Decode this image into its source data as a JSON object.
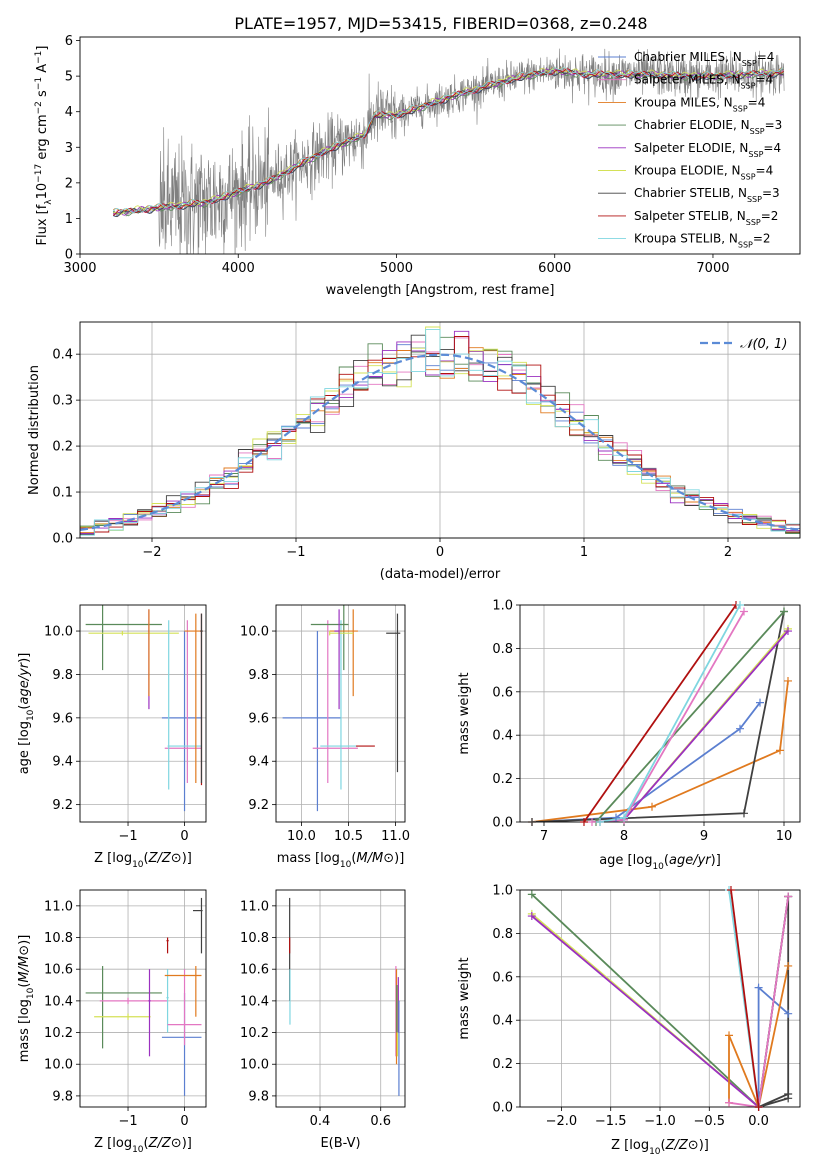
{
  "figure": {
    "title": "PLATE=1957, MJD=53415, FIBERID=0368, z=0.248"
  },
  "colors": {
    "Chabrier MILES": "#5b7fd0",
    "Salpeter MILES": "#e377c2",
    "Kroupa MILES": "#e07a1f",
    "Chabrier ELODIE": "#5a8a5a",
    "Salpeter ELODIE": "#9b30c0",
    "Kroupa ELODIE": "#d4e157",
    "Chabrier STELIB": "#404040",
    "Salpeter STELIB": "#b01010",
    "Kroupa STELIB": "#7fd6e0",
    "normal": "#5b8bd6",
    "data": "#808080"
  },
  "chart_data": [
    {
      "id": "spectrum",
      "type": "line",
      "xlabel": "wavelength [Angstrom, rest frame]",
      "ylabel_parts": [
        "Flux [f",
        "λ",
        "10",
        "−17",
        " erg cm",
        "−2",
        " s",
        "−1",
        " A",
        "−1",
        "]"
      ],
      "xlim": [
        3000,
        7550
      ],
      "ylim": [
        0,
        6.1
      ],
      "xticks": [
        3000,
        4000,
        5000,
        6000,
        7000
      ],
      "yticks": [
        0,
        1,
        2,
        3,
        4,
        5,
        6
      ],
      "continuum_x": [
        3210,
        3500,
        3800,
        4000,
        4200,
        4400,
        4600,
        4800,
        4860,
        5000,
        5200,
        5400,
        5600,
        5800,
        6000,
        6200,
        6400,
        6600,
        6800,
        7000,
        7200,
        7450
      ],
      "continuum_y": [
        1.15,
        1.3,
        1.45,
        1.75,
        2.05,
        2.55,
        3.0,
        3.35,
        3.9,
        3.9,
        4.2,
        4.5,
        4.75,
        5.0,
        5.15,
        5.05,
        5.05,
        5.05,
        5.0,
        5.0,
        5.05,
        5.1
      ],
      "legend": [
        {
          "label": "Chabrier MILES, N",
          "sub": "SSP",
          "tail": "=4"
        },
        {
          "label": "Salpeter MILES, N",
          "sub": "SSP",
          "tail": "=4"
        },
        {
          "label": "Kroupa MILES, N",
          "sub": "SSP",
          "tail": "=4"
        },
        {
          "label": "Chabrier ELODIE, N",
          "sub": "SSP",
          "tail": "=3"
        },
        {
          "label": "Salpeter ELODIE, N",
          "sub": "SSP",
          "tail": "=4"
        },
        {
          "label": "Kroupa ELODIE, N",
          "sub": "SSP",
          "tail": "=4"
        },
        {
          "label": "Chabrier STELIB, N",
          "sub": "SSP",
          "tail": "=3"
        },
        {
          "label": "Salpeter STELIB, N",
          "sub": "SSP",
          "tail": "=2"
        },
        {
          "label": "Kroupa STELIB, N",
          "sub": "SSP",
          "tail": "=2"
        }
      ],
      "legend_placement": "top-right"
    },
    {
      "id": "residuals",
      "type": "step",
      "xlabel": "(data-model)/error",
      "ylabel": "Normed distribution",
      "xlim": [
        -2.5,
        2.5
      ],
      "ylim": [
        0,
        0.47
      ],
      "xticks": [
        -2,
        -1,
        0,
        1,
        2
      ],
      "yticks": [
        0.0,
        0.1,
        0.2,
        0.3,
        0.4
      ],
      "bin_width": 0.1,
      "legend_label": "𝒩(0, 1)",
      "legend_placement": "top-right",
      "grid": true
    },
    {
      "id": "age-vs-Z",
      "type": "errorbar",
      "xlabel": "Z [log10(Z/Z⊙)]",
      "ylabel": "age  [log10(age/yr)]",
      "xlim": [
        -1.85,
        0.38
      ],
      "ylim": [
        9.12,
        10.12
      ],
      "xticks": [
        -1,
        0
      ],
      "yticks": [
        9.2,
        9.4,
        9.6,
        9.8,
        10.0
      ],
      "points": [
        {
          "s": "Chabrier ELODIE",
          "x": -1.45,
          "y": 10.03,
          "xe": [
            -1.75,
            -0.4
          ],
          "ye": [
            9.82,
            10.12
          ]
        },
        {
          "s": "Kroupa ELODIE",
          "x": -1.1,
          "y": 9.99,
          "xe": [
            -1.7,
            -0.1
          ],
          "ye": [
            9.98,
            10.0
          ]
        },
        {
          "s": "Salpeter ELODIE",
          "x": -0.63,
          "y": 10.0,
          "xe": [
            -0.64,
            -0.62
          ],
          "ye": [
            9.64,
            10.1
          ]
        },
        {
          "s": "Kroupa MILES",
          "x": -0.63,
          "y": 10.0,
          "xe": [
            -0.64,
            -0.62
          ],
          "ye": [
            9.7,
            10.1
          ]
        },
        {
          "s": "Chabrier MILES",
          "x": 0.0,
          "y": 9.6,
          "xe": [
            -0.4,
            0.3
          ],
          "ye": [
            9.17,
            10.0
          ]
        },
        {
          "s": "Salpeter MILES",
          "x": 0.05,
          "y": 9.46,
          "xe": [
            -0.35,
            0.3
          ],
          "ye": [
            9.3,
            10.05
          ]
        },
        {
          "s": "Kroupa STELIB",
          "x": -0.28,
          "y": 9.47,
          "xe": [
            -0.3,
            0.3
          ],
          "ye": [
            9.27,
            10.05
          ]
        },
        {
          "s": "Kroupa MILES",
          "x": 0.2,
          "y": 10.0,
          "xe": [
            0.0,
            0.32
          ],
          "ye": [
            9.3,
            10.08
          ]
        },
        {
          "s": "Salpeter STELIB",
          "x": 0.3,
          "y": 10.0,
          "xe": [
            0.28,
            0.32
          ],
          "ye": [
            9.29,
            10.08
          ]
        },
        {
          "s": "Chabrier STELIB",
          "x": 0.3,
          "y": 10.0,
          "xe": [
            0.28,
            0.32
          ],
          "ye": [
            9.3,
            10.08
          ]
        }
      ]
    },
    {
      "id": "age-vs-mass",
      "type": "errorbar",
      "xlabel": "mass [log10(M/M⊙)]",
      "ylabel": "",
      "xlim": [
        9.73,
        11.1
      ],
      "ylim": [
        9.12,
        10.12
      ],
      "xticks": [
        10.0,
        10.5,
        11.0
      ],
      "yticks": [
        9.2,
        9.4,
        9.6,
        9.8,
        10.0
      ],
      "points": [
        {
          "s": "Chabrier MILES",
          "x": 10.17,
          "y": 9.6,
          "xe": [
            9.8,
            10.42
          ],
          "ye": [
            9.17,
            10.0
          ]
        },
        {
          "s": "Salpeter MILES",
          "x": 10.28,
          "y": 9.46,
          "xe": [
            10.12,
            10.6
          ],
          "ye": [
            9.3,
            10.05
          ]
        },
        {
          "s": "Kroupa STELIB",
          "x": 10.42,
          "y": 9.47,
          "xe": [
            10.2,
            10.6
          ],
          "ye": [
            9.27,
            10.05
          ]
        },
        {
          "s": "Salpeter STELIB",
          "x": 10.78,
          "y": 9.47,
          "xe": [
            10.58,
            10.78
          ],
          "ye": [
            9.47,
            9.47
          ]
        },
        {
          "s": "Chabrier ELODIE",
          "x": 10.45,
          "y": 10.03,
          "xe": [
            10.1,
            10.5
          ],
          "ye": [
            9.82,
            10.12
          ]
        },
        {
          "s": "Kroupa MILES",
          "x": 10.55,
          "y": 10.0,
          "xe": [
            10.3,
            10.6
          ],
          "ye": [
            9.7,
            10.1
          ]
        },
        {
          "s": "Kroupa ELODIE",
          "x": 10.3,
          "y": 9.99,
          "xe": [
            10.3,
            10.55
          ],
          "ye": [
            9.98,
            10.0
          ]
        },
        {
          "s": "Salpeter ELODIE",
          "x": 10.4,
          "y": 10.0,
          "xe": [
            10.35,
            10.4
          ],
          "ye": [
            9.64,
            10.1
          ]
        },
        {
          "s": "Chabrier STELIB",
          "x": 11.02,
          "y": 9.99,
          "xe": [
            10.9,
            11.05
          ],
          "ye": [
            9.35,
            10.08
          ]
        }
      ]
    },
    {
      "id": "mass-weight-vs-age",
      "type": "line",
      "xlabel": "age  [log10(age/yr)]",
      "ylabel": "mass weight",
      "xlim": [
        6.7,
        10.2
      ],
      "ylim": [
        0,
        1.0
      ],
      "xticks": [
        7,
        8,
        9,
        10
      ],
      "yticks": [
        0.0,
        0.2,
        0.4,
        0.6,
        0.8,
        1.0
      ],
      "series": [
        {
          "s": "Chabrier MILES",
          "x": [
            6.85,
            7.9,
            9.45,
            9.7
          ],
          "y": [
            0.0,
            0.02,
            0.43,
            0.55
          ]
        },
        {
          "s": "Kroupa MILES",
          "x": [
            6.85,
            8.35,
            9.95,
            10.05
          ],
          "y": [
            0.0,
            0.07,
            0.33,
            0.65
          ]
        },
        {
          "s": "Chabrier STELIB",
          "x": [
            6.85,
            9.5,
            10.0
          ],
          "y": [
            0.0,
            0.04,
            0.97
          ]
        },
        {
          "s": "Kroupa ELODIE",
          "x": [
            7.7,
            8.0,
            10.05
          ],
          "y": [
            0.0,
            0.01,
            0.89
          ]
        },
        {
          "s": "Salpeter ELODIE",
          "x": [
            7.7,
            8.0,
            10.05
          ],
          "y": [
            0.0,
            0.01,
            0.88
          ]
        },
        {
          "s": "Chabrier ELODIE",
          "x": [
            7.65,
            10.0
          ],
          "y": [
            0.0,
            0.97
          ]
        },
        {
          "s": "Salpeter STELIB",
          "x": [
            7.5,
            9.4
          ],
          "y": [
            0.0,
            1.0
          ]
        },
        {
          "s": "Salpeter MILES",
          "x": [
            7.6,
            8.0,
            9.5
          ],
          "y": [
            0.0,
            0.01,
            0.97
          ]
        },
        {
          "s": "Kroupa STELIB",
          "x": [
            7.7,
            8.0,
            9.45
          ],
          "y": [
            0.0,
            0.02,
            1.0
          ]
        }
      ]
    },
    {
      "id": "mass-vs-Z",
      "type": "errorbar",
      "xlabel": "Z [log10(Z/Z⊙)]",
      "ylabel": "mass [log10(M/M⊙)]",
      "xlim": [
        -1.85,
        0.38
      ],
      "ylim": [
        9.73,
        11.1
      ],
      "xticks": [
        -1,
        0
      ],
      "yticks": [
        9.8,
        10.0,
        10.2,
        10.4,
        10.6,
        10.8,
        11.0
      ],
      "points": [
        {
          "s": "Chabrier ELODIE",
          "x": -1.45,
          "y": 10.45,
          "xe": [
            -1.75,
            -0.4
          ],
          "ye": [
            10.1,
            10.62
          ]
        },
        {
          "s": "Salpeter MILES",
          "x": -1.0,
          "y": 10.4,
          "xe": [
            -1.5,
            -0.3
          ],
          "ye": [
            10.38,
            10.42
          ]
        },
        {
          "s": "Kroupa ELODIE",
          "x": -1.0,
          "y": 10.3,
          "xe": [
            -1.6,
            -0.6
          ],
          "ye": [
            10.28,
            10.32
          ]
        },
        {
          "s": "Salpeter ELODIE",
          "x": -0.62,
          "y": 10.4,
          "xe": [
            -0.64,
            -0.6
          ],
          "ye": [
            10.05,
            10.6
          ]
        },
        {
          "s": "Salpeter STELIB",
          "x": -0.3,
          "y": 10.78,
          "xe": [
            -0.32,
            -0.28
          ],
          "ye": [
            10.7,
            10.8
          ]
        },
        {
          "s": "Kroupa STELIB",
          "x": -0.3,
          "y": 10.42,
          "xe": [
            -0.32,
            -0.28
          ],
          "ye": [
            10.2,
            10.6
          ]
        },
        {
          "s": "Chabrier MILES",
          "x": 0.0,
          "y": 10.17,
          "xe": [
            -0.4,
            0.3
          ],
          "ye": [
            9.8,
            10.45
          ]
        },
        {
          "s": "Salpeter MILES",
          "x": 0.0,
          "y": 10.25,
          "xe": [
            -0.3,
            0.3
          ],
          "ye": [
            10.12,
            10.6
          ]
        },
        {
          "s": "Kroupa MILES",
          "x": 0.2,
          "y": 10.56,
          "xe": [
            -0.35,
            0.3
          ],
          "ye": [
            10.3,
            10.62
          ]
        },
        {
          "s": "Chabrier STELIB",
          "x": 0.3,
          "y": 10.97,
          "xe": [
            0.15,
            0.32
          ],
          "ye": [
            10.7,
            11.05
          ]
        }
      ]
    },
    {
      "id": "mass-vs-ebv",
      "type": "errorbar",
      "xlabel": "E(B-V)",
      "ylabel": "",
      "xlim": [
        0.255,
        0.68
      ],
      "ylim": [
        9.73,
        11.1
      ],
      "xticks": [
        0.4,
        0.6
      ],
      "yticks": [
        9.8,
        10.0,
        10.2,
        10.4,
        10.6,
        10.8,
        11.0
      ],
      "points": [
        {
          "s": "Chabrier STELIB",
          "x": 0.3,
          "y": 10.8,
          "xe": [
            0.3,
            0.3
          ],
          "ye": [
            10.4,
            11.05
          ]
        },
        {
          "s": "Salpeter STELIB",
          "x": 0.3,
          "y": 10.78,
          "xe": [
            0.3,
            0.3
          ],
          "ye": [
            10.7,
            10.8
          ]
        },
        {
          "s": "Kroupa STELIB",
          "x": 0.301,
          "y": 10.42,
          "xe": [
            0.301,
            0.301
          ],
          "ye": [
            10.25,
            10.6
          ]
        },
        {
          "s": "Salpeter MILES",
          "x": 0.65,
          "y": 10.4,
          "xe": [
            0.65,
            0.65
          ],
          "ye": [
            10.05,
            10.62
          ]
        },
        {
          "s": "Kroupa MILES",
          "x": 0.652,
          "y": 10.56,
          "xe": [
            0.652,
            0.652
          ],
          "ye": [
            10.0,
            10.6
          ]
        },
        {
          "s": "Kroupa ELODIE",
          "x": 0.655,
          "y": 10.3,
          "xe": [
            0.655,
            0.655
          ],
          "ye": [
            10.05,
            10.5
          ]
        },
        {
          "s": "Salpeter ELODIE",
          "x": 0.658,
          "y": 10.4,
          "xe": [
            0.658,
            0.658
          ],
          "ye": [
            10.2,
            10.55
          ]
        },
        {
          "s": "Chabrier ELODIE",
          "x": 0.653,
          "y": 10.45,
          "xe": [
            0.653,
            0.653
          ],
          "ye": [
            10.2,
            10.5
          ]
        },
        {
          "s": "Chabrier MILES",
          "x": 0.66,
          "y": 10.17,
          "xe": [
            0.66,
            0.66
          ],
          "ye": [
            9.8,
            10.4
          ]
        }
      ]
    },
    {
      "id": "mass-weight-vs-Z",
      "type": "line",
      "xlabel": "Z [log10(Z/Z⊙)]",
      "ylabel": "mass weight",
      "xlim": [
        -2.42,
        0.42
      ],
      "ylim": [
        0,
        1.0
      ],
      "xticks": [
        -2.0,
        -1.5,
        -1.0,
        -0.5,
        0.0
      ],
      "yticks": [
        0.0,
        0.2,
        0.4,
        0.6,
        0.8,
        1.0
      ],
      "series": [
        {
          "s": "Chabrier ELODIE",
          "x": [
            -2.3,
            0.0,
            0.3
          ],
          "y": [
            0.98,
            0.0,
            0.97
          ]
        },
        {
          "s": "Kroupa ELODIE",
          "x": [
            -2.3,
            0.0
          ],
          "y": [
            0.89,
            0.0
          ]
        },
        {
          "s": "Salpeter ELODIE",
          "x": [
            -2.3,
            0.0
          ],
          "y": [
            0.88,
            0.0
          ]
        },
        {
          "s": "Chabrier MILES",
          "x": [
            0.0,
            0.0,
            0.3
          ],
          "y": [
            0.0,
            0.55,
            0.43
          ]
        },
        {
          "s": "Kroupa MILES",
          "x": [
            -0.3,
            -0.3,
            0.0,
            0.3
          ],
          "y": [
            0.02,
            0.33,
            0.0,
            0.65
          ]
        },
        {
          "s": "Chabrier STELIB",
          "x": [
            0.0,
            0.3,
            0.3,
            0.0,
            0.3
          ],
          "y": [
            0.0,
            0.97,
            0.04,
            0.0,
            0.06
          ]
        },
        {
          "s": "Salpeter MILES",
          "x": [
            -0.3,
            0.0,
            0.3
          ],
          "y": [
            0.02,
            0.0,
            0.97
          ]
        },
        {
          "s": "Kroupa STELIB",
          "x": [
            -0.3,
            0.0
          ],
          "y": [
            1.0,
            0.0
          ]
        },
        {
          "s": "Salpeter STELIB",
          "x": [
            -0.28,
            0.0
          ],
          "y": [
            1.0,
            0.0
          ]
        }
      ]
    }
  ]
}
